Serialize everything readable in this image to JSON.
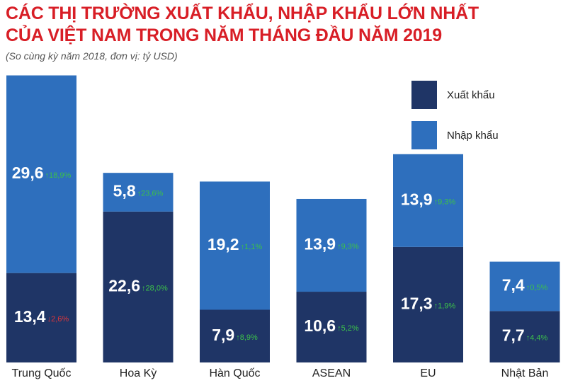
{
  "header": {
    "title_line1": "CÁC THỊ TRƯỜNG XUẤT KHẨU, NHẬP KHẨU LỚN NHẤT",
    "title_line2": "CỦA VIỆT NAM TRONG NĂM THÁNG ĐẦU NĂM 2019",
    "subtitle": "(So cùng kỳ năm 2018, đơn vị: tỷ USD)"
  },
  "colors": {
    "export": "#1f3566",
    "import": "#2e6fbd",
    "up": "#3cc04a",
    "down": "#e0363a"
  },
  "chart_data": {
    "type": "bar",
    "stacked": true,
    "categories": [
      "Trung Quốc",
      "Hoa Kỳ",
      "Hàn Quốc",
      "ASEAN",
      "EU",
      "Nhật Bản"
    ],
    "series": [
      {
        "name": "Xuất khẩu",
        "values": [
          13.4,
          22.6,
          7.9,
          10.6,
          17.3,
          7.7
        ],
        "value_labels": [
          "13,4",
          "22,6",
          "7,9",
          "10,6",
          "17,3",
          "7,7"
        ],
        "change_labels": [
          "↓2,6%",
          "↑28,0%",
          "↑8,9%",
          "↑5,2%",
          "↑1,9%",
          "↑4,4%"
        ],
        "change_dir": [
          "down",
          "up",
          "up",
          "up",
          "up",
          "up"
        ]
      },
      {
        "name": "Nhập khẩu",
        "values": [
          29.6,
          5.8,
          19.2,
          13.9,
          13.9,
          7.4
        ],
        "value_labels": [
          "29,6",
          "5,8",
          "19,2",
          "13,9",
          "13,9",
          "7,4"
        ],
        "change_labels": [
          "↑18,9%",
          "↑23,6%",
          "↑1,1%",
          "↑9,3%",
          "↑9,3%",
          "↑0,5%"
        ],
        "change_dir": [
          "up",
          "up",
          "up",
          "up",
          "up",
          "up"
        ]
      }
    ],
    "legend": {
      "position": "top-right",
      "items": [
        "Xuất khẩu",
        "Nhập khẩu"
      ]
    },
    "axes_visible": false,
    "grid": false
  }
}
